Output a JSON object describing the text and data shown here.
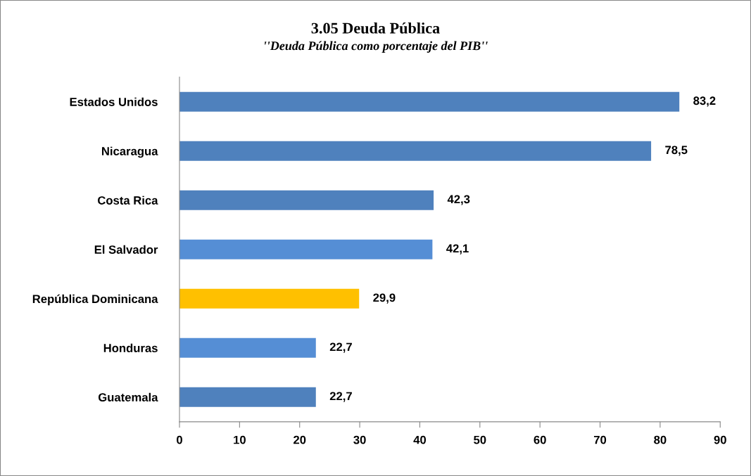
{
  "chart_data": {
    "type": "bar",
    "orientation": "horizontal",
    "title": "3.05 Deuda Pública",
    "subtitle": "''Deuda Pública como porcentaje del PIB''",
    "categories": [
      "Estados Unidos",
      "Nicaragua",
      "Costa Rica",
      "El Salvador",
      "República Dominicana",
      "Honduras",
      "Guatemala"
    ],
    "values": [
      83.2,
      78.5,
      42.3,
      42.1,
      29.9,
      22.7,
      22.7
    ],
    "colors": [
      "#4f81bd",
      "#4f81bd",
      "#4f81bd",
      "#558ed5",
      "#ffc000",
      "#558ed5",
      "#4f81bd"
    ],
    "value_labels": [
      "83,2",
      "78,5",
      "42,3",
      "42,1",
      "29,9",
      "22,7",
      "22,7"
    ],
    "xlim": [
      0,
      90
    ],
    "xticks": [
      0,
      10,
      20,
      30,
      40,
      50,
      60,
      70,
      80,
      90
    ],
    "grid": false,
    "legend": false
  }
}
